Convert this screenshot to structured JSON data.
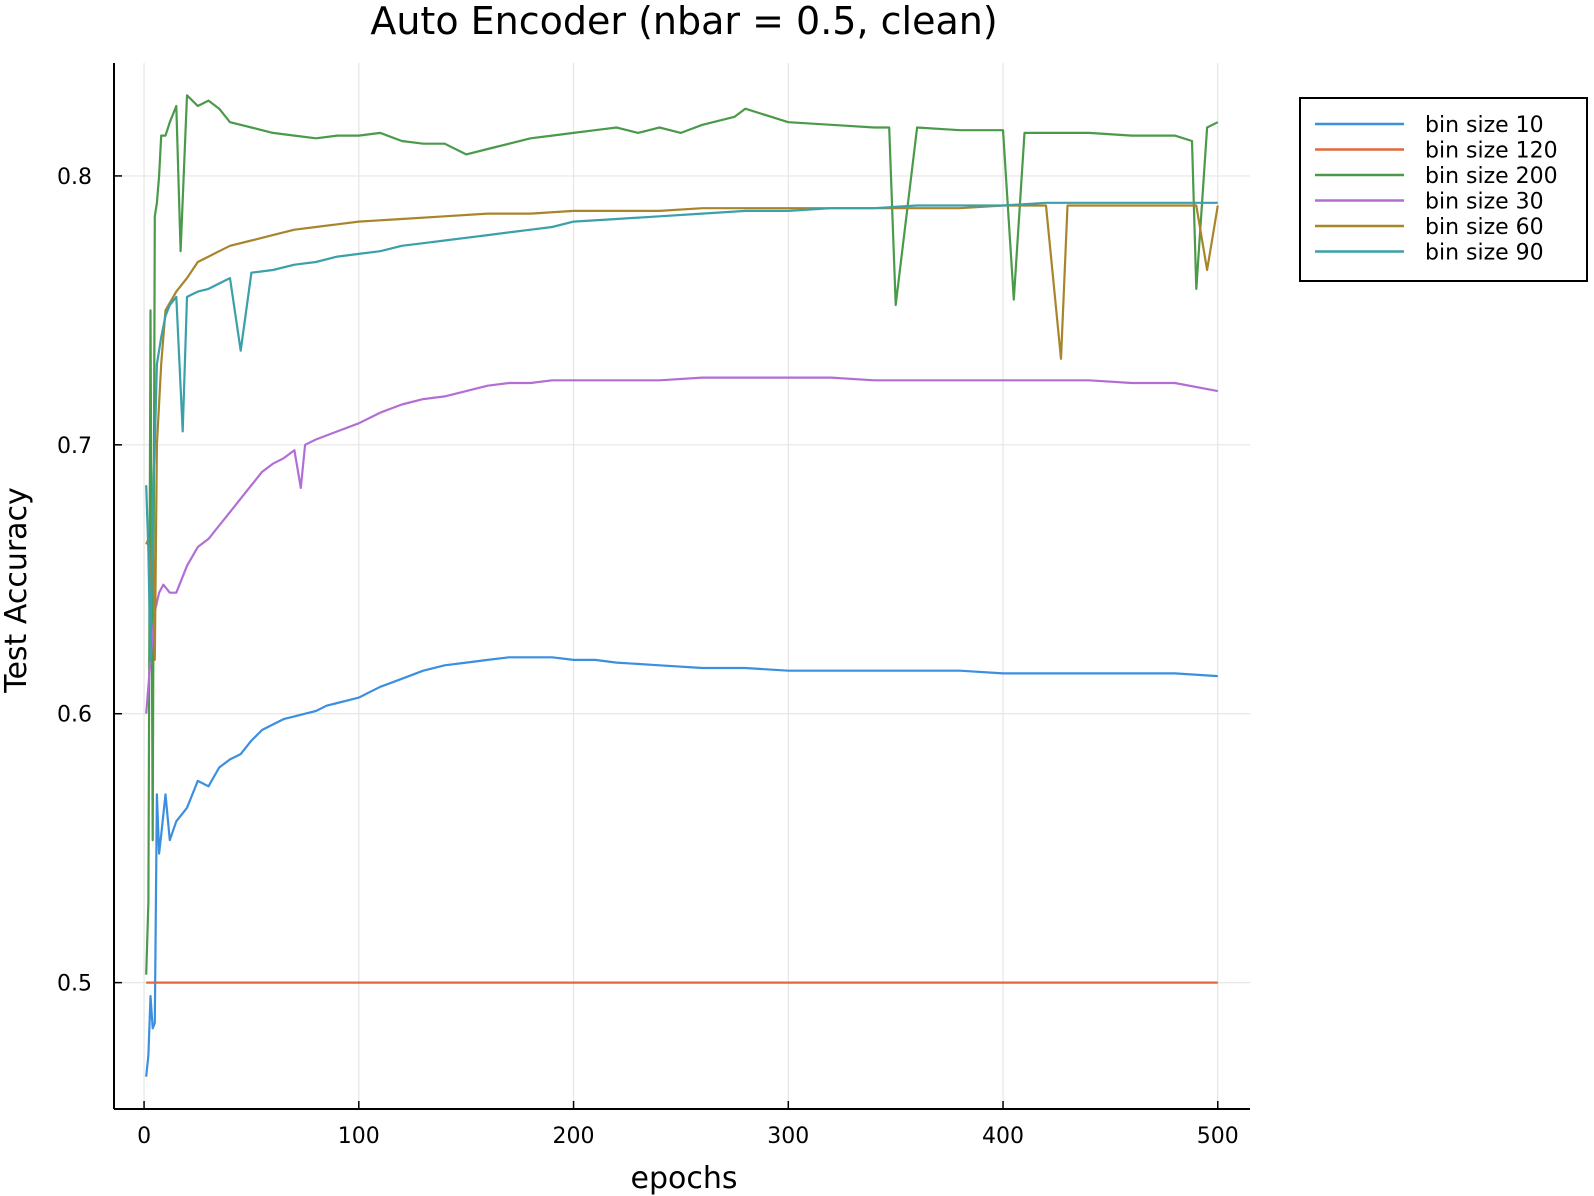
{
  "chart_data": {
    "type": "line",
    "title": "Auto Encoder (nbar = 0.5, clean)",
    "xlabel": "epochs",
    "ylabel": "Test Accuracy",
    "xlim": [
      -14,
      515
    ],
    "ylim": [
      0.453,
      0.842
    ],
    "x_ticks": [
      0,
      100,
      200,
      300,
      400,
      500
    ],
    "y_ticks": [
      0.5,
      0.6,
      0.7,
      0.8
    ],
    "grid": true,
    "legend_position": "outside top-right",
    "series": [
      {
        "name": "bin size 10",
        "color": "#3b8fe0",
        "x": [
          1,
          2,
          3,
          4,
          5,
          6,
          7,
          8,
          10,
          12,
          15,
          20,
          25,
          30,
          35,
          40,
          45,
          50,
          55,
          60,
          65,
          70,
          75,
          80,
          85,
          90,
          95,
          100,
          105,
          110,
          120,
          130,
          140,
          150,
          160,
          170,
          180,
          190,
          200,
          210,
          220,
          240,
          260,
          280,
          300,
          320,
          340,
          360,
          380,
          400,
          420,
          440,
          460,
          480,
          500
        ],
        "values": [
          0.465,
          0.473,
          0.495,
          0.483,
          0.485,
          0.57,
          0.548,
          0.555,
          0.57,
          0.553,
          0.56,
          0.565,
          0.575,
          0.573,
          0.58,
          0.583,
          0.585,
          0.59,
          0.594,
          0.596,
          0.598,
          0.599,
          0.6,
          0.601,
          0.603,
          0.604,
          0.605,
          0.606,
          0.608,
          0.61,
          0.613,
          0.616,
          0.618,
          0.619,
          0.62,
          0.621,
          0.621,
          0.621,
          0.62,
          0.62,
          0.619,
          0.618,
          0.617,
          0.617,
          0.616,
          0.616,
          0.616,
          0.616,
          0.616,
          0.615,
          0.615,
          0.615,
          0.615,
          0.615,
          0.614
        ]
      },
      {
        "name": "bin size 120",
        "color": "#e0683a",
        "x": [
          1,
          500
        ],
        "values": [
          0.5,
          0.5
        ]
      },
      {
        "name": "bin size 200",
        "color": "#4a9a4a",
        "x": [
          1,
          2,
          3,
          4,
          5,
          6,
          7,
          8,
          10,
          12,
          15,
          17,
          20,
          25,
          30,
          35,
          40,
          50,
          60,
          70,
          80,
          90,
          100,
          110,
          120,
          130,
          140,
          150,
          160,
          170,
          180,
          190,
          200,
          210,
          220,
          230,
          240,
          250,
          260,
          275,
          280,
          300,
          320,
          340,
          347,
          350,
          360,
          380,
          400,
          405,
          410,
          420,
          440,
          460,
          480,
          488,
          490,
          495,
          500
        ],
        "values": [
          0.503,
          0.53,
          0.75,
          0.553,
          0.785,
          0.79,
          0.8,
          0.815,
          0.815,
          0.82,
          0.826,
          0.772,
          0.83,
          0.826,
          0.828,
          0.825,
          0.82,
          0.818,
          0.816,
          0.815,
          0.814,
          0.815,
          0.815,
          0.816,
          0.813,
          0.812,
          0.812,
          0.808,
          0.81,
          0.812,
          0.814,
          0.815,
          0.816,
          0.817,
          0.818,
          0.816,
          0.818,
          0.816,
          0.819,
          0.822,
          0.825,
          0.82,
          0.819,
          0.818,
          0.818,
          0.752,
          0.818,
          0.817,
          0.817,
          0.754,
          0.816,
          0.816,
          0.816,
          0.815,
          0.815,
          0.813,
          0.758,
          0.818,
          0.82
        ]
      },
      {
        "name": "bin size 30",
        "color": "#b36ed6",
        "x": [
          1,
          3,
          5,
          7,
          9,
          12,
          15,
          20,
          25,
          30,
          35,
          40,
          45,
          50,
          55,
          60,
          65,
          70,
          73,
          75,
          80,
          90,
          100,
          110,
          120,
          130,
          140,
          150,
          160,
          170,
          180,
          190,
          200,
          220,
          240,
          260,
          280,
          300,
          320,
          340,
          360,
          380,
          400,
          420,
          440,
          460,
          480,
          500
        ],
        "values": [
          0.6,
          0.62,
          0.638,
          0.645,
          0.648,
          0.645,
          0.645,
          0.655,
          0.662,
          0.665,
          0.67,
          0.675,
          0.68,
          0.685,
          0.69,
          0.693,
          0.695,
          0.698,
          0.684,
          0.7,
          0.702,
          0.705,
          0.708,
          0.712,
          0.715,
          0.717,
          0.718,
          0.72,
          0.722,
          0.723,
          0.723,
          0.724,
          0.724,
          0.724,
          0.724,
          0.725,
          0.725,
          0.725,
          0.725,
          0.724,
          0.724,
          0.724,
          0.724,
          0.724,
          0.724,
          0.723,
          0.723,
          0.72
        ]
      },
      {
        "name": "bin size 60",
        "color": "#a8852a",
        "x": [
          1,
          2,
          3,
          4,
          5,
          6,
          8,
          10,
          15,
          20,
          25,
          30,
          35,
          40,
          50,
          60,
          70,
          80,
          90,
          100,
          120,
          140,
          160,
          180,
          200,
          220,
          240,
          260,
          280,
          300,
          320,
          340,
          360,
          380,
          400,
          420,
          427,
          430,
          440,
          460,
          480,
          490,
          495,
          500
        ],
        "values": [
          0.663,
          0.665,
          0.64,
          0.68,
          0.62,
          0.7,
          0.73,
          0.75,
          0.757,
          0.762,
          0.768,
          0.77,
          0.772,
          0.774,
          0.776,
          0.778,
          0.78,
          0.781,
          0.782,
          0.783,
          0.784,
          0.785,
          0.786,
          0.786,
          0.787,
          0.787,
          0.787,
          0.788,
          0.788,
          0.788,
          0.788,
          0.788,
          0.788,
          0.788,
          0.789,
          0.789,
          0.732,
          0.789,
          0.789,
          0.789,
          0.789,
          0.789,
          0.765,
          0.789
        ]
      },
      {
        "name": "bin size 90",
        "color": "#3aa0aa",
        "x": [
          1,
          2,
          3,
          4,
          5,
          6,
          8,
          10,
          12,
          15,
          18,
          20,
          25,
          30,
          35,
          40,
          45,
          50,
          60,
          70,
          80,
          90,
          100,
          110,
          120,
          130,
          140,
          150,
          160,
          170,
          180,
          190,
          200,
          220,
          240,
          260,
          280,
          300,
          320,
          340,
          360,
          380,
          400,
          420,
          440,
          460,
          480,
          500
        ],
        "values": [
          0.685,
          0.66,
          0.62,
          0.68,
          0.7,
          0.73,
          0.74,
          0.748,
          0.752,
          0.755,
          0.705,
          0.755,
          0.757,
          0.758,
          0.76,
          0.762,
          0.735,
          0.764,
          0.765,
          0.767,
          0.768,
          0.77,
          0.771,
          0.772,
          0.774,
          0.775,
          0.776,
          0.777,
          0.778,
          0.779,
          0.78,
          0.781,
          0.783,
          0.784,
          0.785,
          0.786,
          0.787,
          0.787,
          0.788,
          0.788,
          0.789,
          0.789,
          0.789,
          0.79,
          0.79,
          0.79,
          0.79,
          0.79
        ]
      }
    ]
  }
}
